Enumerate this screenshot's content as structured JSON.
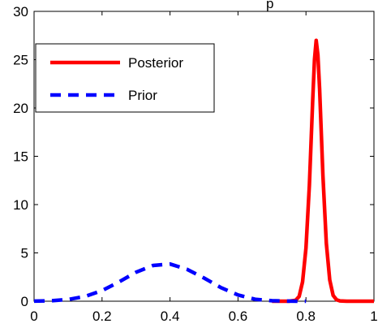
{
  "chart_data": {
    "type": "line",
    "title": "p",
    "xlabel": "",
    "ylabel": "",
    "xlim": [
      0,
      1
    ],
    "ylim": [
      0,
      30
    ],
    "grid": false,
    "legend_position": "top-left",
    "x_ticks": [
      "0",
      "0.2",
      "0.4",
      "0.6",
      "0.8",
      "1"
    ],
    "y_ticks": [
      "0",
      "5",
      "10",
      "15",
      "20",
      "25",
      "30"
    ],
    "series": [
      {
        "name": "Posterior",
        "color": "#ff0000",
        "style": "solid",
        "x": [
          0.7,
          0.75,
          0.77,
          0.78,
          0.79,
          0.8,
          0.81,
          0.82,
          0.825,
          0.83,
          0.835,
          0.84,
          0.85,
          0.86,
          0.87,
          0.88,
          0.89,
          0.9,
          0.92,
          0.95,
          1.0
        ],
        "y": [
          0,
          0,
          0.1,
          0.5,
          2.0,
          5.5,
          12.0,
          21.0,
          25.0,
          27.0,
          25.5,
          22.0,
          13.0,
          6.0,
          2.2,
          0.6,
          0.15,
          0.03,
          0,
          0,
          0
        ]
      },
      {
        "name": "Prior",
        "color": "#0000ff",
        "style": "dashed",
        "x": [
          0,
          0.05,
          0.1,
          0.15,
          0.2,
          0.25,
          0.3,
          0.35,
          0.4,
          0.45,
          0.5,
          0.55,
          0.6,
          0.65,
          0.7,
          0.75,
          0.8
        ],
        "y": [
          0.01,
          0.05,
          0.18,
          0.5,
          1.1,
          2.0,
          3.0,
          3.7,
          3.85,
          3.3,
          2.4,
          1.4,
          0.65,
          0.2,
          0.05,
          0.01,
          0
        ]
      }
    ]
  }
}
